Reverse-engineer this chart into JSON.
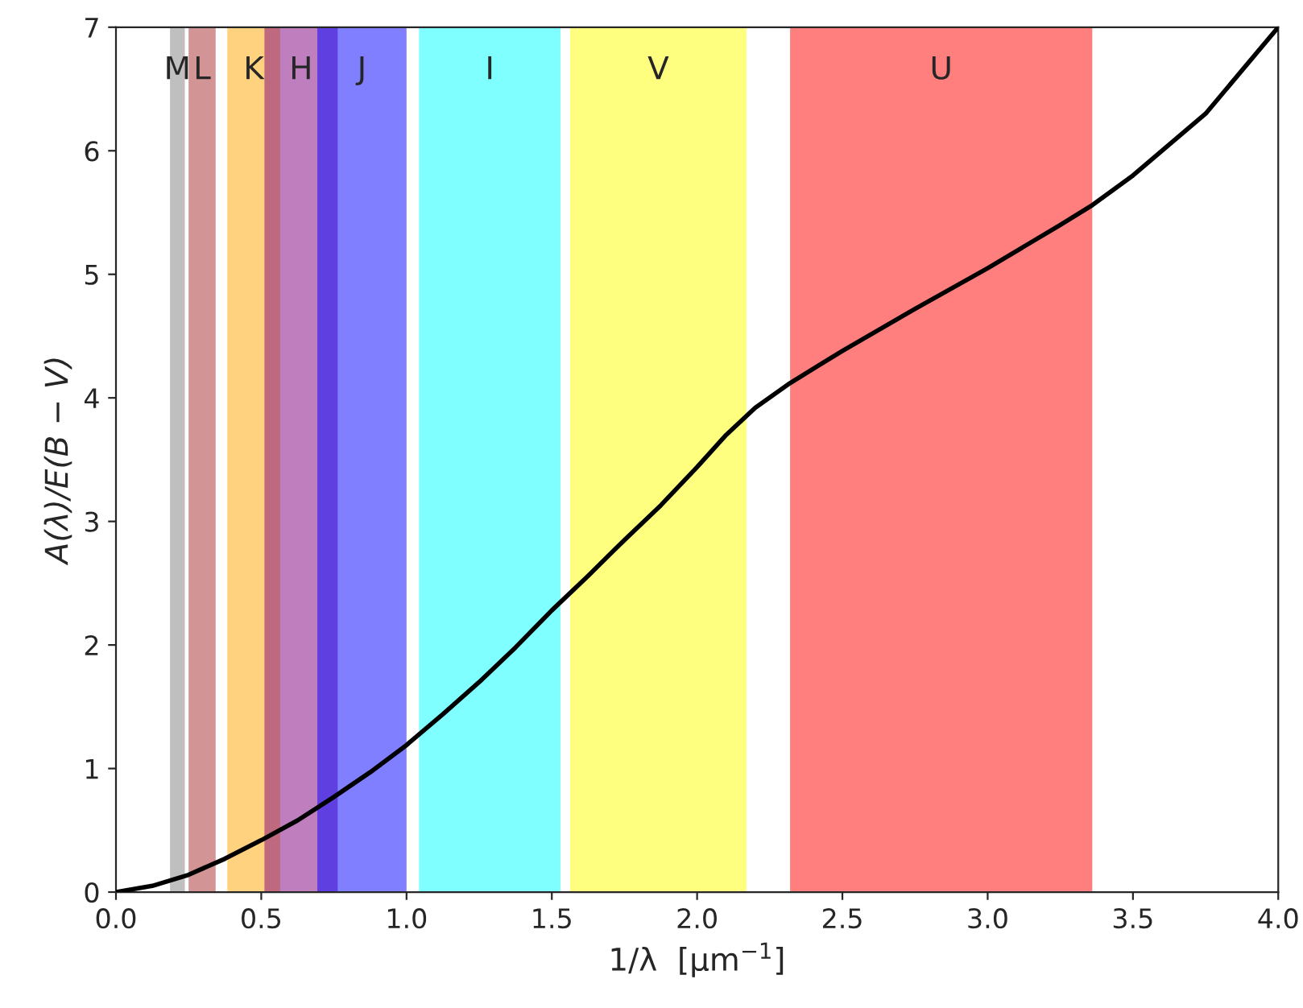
{
  "chart_data": {
    "type": "line",
    "xlabel": "1/λ  [μm$^{−1}$]",
    "ylabel": "A(λ)/E(B − V)",
    "x": [
      0,
      0.125,
      0.25,
      0.375,
      0.5,
      0.625,
      0.75,
      0.875,
      1.0,
      1.125,
      1.25,
      1.375,
      1.5,
      1.625,
      1.75,
      1.875,
      2.0,
      2.1,
      2.2,
      2.32,
      2.5,
      2.75,
      3.0,
      3.25,
      3.36,
      3.5,
      3.75,
      4.0
    ],
    "series": [
      {
        "color": "#000000",
        "values": [
          0,
          0.05,
          0.14,
          0.27,
          0.42,
          0.58,
          0.77,
          0.97,
          1.19,
          1.44,
          1.7,
          1.98,
          2.28,
          2.56,
          2.85,
          3.13,
          3.44,
          3.7,
          3.92,
          4.12,
          4.38,
          4.72,
          5.05,
          5.4,
          5.56,
          5.8,
          6.3,
          7.0
        ]
      }
    ],
    "bands": [
      {
        "axis": "x",
        "from": 0.186,
        "to": 0.237,
        "label": "M",
        "color": "#808080"
      },
      {
        "axis": "x",
        "from": 0.25,
        "to": 0.343,
        "label": "L",
        "color": "#a52a2a"
      },
      {
        "axis": "x",
        "from": 0.383,
        "to": 0.565,
        "label": "K",
        "color": "#ffa500"
      },
      {
        "axis": "x",
        "from": 0.511,
        "to": 0.763,
        "label": "H",
        "color": "#800080"
      },
      {
        "axis": "x",
        "from": 0.693,
        "to": 1.0,
        "label": "J",
        "color": "#0000ff"
      },
      {
        "axis": "x",
        "from": 1.043,
        "to": 1.53,
        "label": "I",
        "color": "#00ffff"
      },
      {
        "axis": "x",
        "from": 1.563,
        "to": 2.17,
        "label": "V",
        "color": "#ffff00"
      },
      {
        "axis": "x",
        "from": 2.32,
        "to": 3.36,
        "label": "U",
        "color": "#ff0000"
      }
    ],
    "xlim": [
      0,
      4.0
    ],
    "ylim": [
      0,
      7
    ],
    "xticks": [
      {
        "value": 0,
        "label": "0.0"
      },
      0.5,
      {
        "value": 1,
        "label": "1.0"
      },
      1.5,
      {
        "value": 2,
        "label": "2.0"
      },
      2.5,
      {
        "value": 3,
        "label": "3.0"
      },
      3.5,
      {
        "value": 4,
        "label": "4.0"
      }
    ],
    "yticks": [
      0,
      1,
      2,
      3,
      4,
      5,
      6,
      7
    ],
    "grid": false,
    "legend": false,
    "marker": "none",
    "line_style": "solid"
  }
}
